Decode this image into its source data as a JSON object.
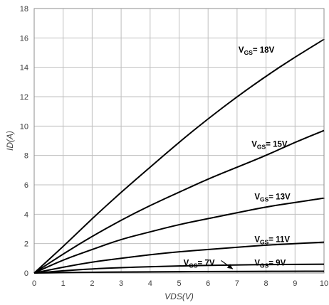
{
  "chart_data": {
    "type": "line",
    "xlabel": "VDS(V)",
    "ylabel": "ID(A)",
    "xlim": [
      0,
      10
    ],
    "ylim": [
      0,
      18
    ],
    "xticks": [
      0,
      1,
      2,
      3,
      4,
      5,
      6,
      7,
      8,
      9,
      10
    ],
    "yticks": [
      0,
      2,
      4,
      6,
      8,
      10,
      12,
      14,
      16,
      18
    ],
    "grid": true,
    "x": [
      0,
      1,
      2,
      3,
      4,
      5,
      6,
      7,
      8,
      9,
      10
    ],
    "series": [
      {
        "name": "VGS=18V",
        "label_main": "V",
        "label_sub": "GS",
        "label_rest": "= 18V",
        "values": [
          0,
          1.8,
          3.7,
          5.5,
          7.2,
          8.9,
          10.5,
          12.0,
          13.4,
          14.7,
          15.9
        ]
      },
      {
        "name": "VGS= 15V",
        "label_main": "V",
        "label_sub": "GS",
        "label_rest": "= 15V",
        "values": [
          0,
          1.3,
          2.5,
          3.6,
          4.6,
          5.5,
          6.4,
          7.2,
          8.0,
          8.9,
          9.7
        ]
      },
      {
        "name": "VGS= 13V",
        "label_main": "V",
        "label_sub": "GS",
        "label_rest": "= 13V",
        "values": [
          0,
          0.9,
          1.6,
          2.3,
          2.8,
          3.3,
          3.7,
          4.1,
          4.5,
          4.8,
          5.1
        ]
      },
      {
        "name": "VGS= 11V",
        "label_main": "V",
        "label_sub": "GS",
        "label_rest": "= 11V",
        "values": [
          0,
          0.4,
          0.75,
          1.0,
          1.25,
          1.45,
          1.6,
          1.75,
          1.9,
          2.0,
          2.1
        ]
      },
      {
        "name": "VGS= 9V",
        "label_main": "V",
        "label_sub": "GS",
        "label_rest": "= 9V",
        "values": [
          0,
          0.15,
          0.28,
          0.37,
          0.43,
          0.48,
          0.52,
          0.55,
          0.57,
          0.59,
          0.6
        ]
      },
      {
        "name": "VGS= 7V",
        "label_main": "V",
        "label_sub": "GS",
        "label_rest": "= 7V",
        "values": [
          0,
          0.03,
          0.05,
          0.07,
          0.08,
          0.09,
          0.1,
          0.11,
          0.11,
          0.12,
          0.12
        ]
      }
    ]
  }
}
